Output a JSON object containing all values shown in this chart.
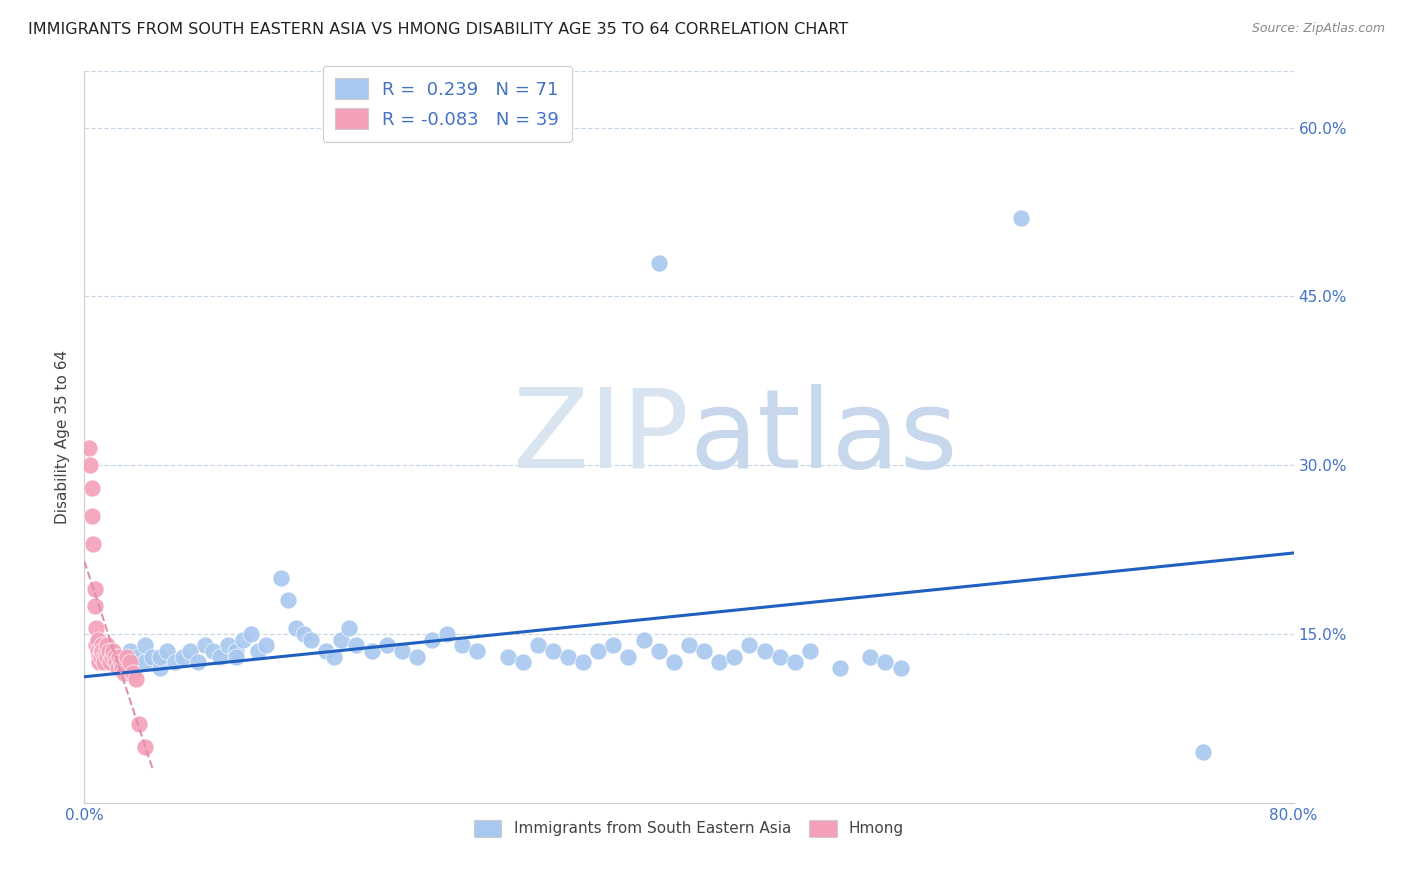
{
  "title": "IMMIGRANTS FROM SOUTH EASTERN ASIA VS HMONG DISABILITY AGE 35 TO 64 CORRELATION CHART",
  "source": "Source: ZipAtlas.com",
  "xlabel": "Immigrants from South Eastern Asia",
  "ylabel": "Disability Age 35 to 64",
  "xlim": [
    0.0,
    0.8
  ],
  "ylim": [
    0.0,
    0.65
  ],
  "ytick_positions": [
    0.15,
    0.3,
    0.45,
    0.6
  ],
  "ytick_labels": [
    "15.0%",
    "30.0%",
    "45.0%",
    "60.0%"
  ],
  "blue_R": 0.239,
  "blue_N": 71,
  "pink_R": -0.083,
  "pink_N": 39,
  "blue_color": "#a8c8f0",
  "pink_color": "#f4a0b8",
  "blue_line_color": "#2060c0",
  "pink_line_color": "#e090a8",
  "watermark_color": "#e0e8f4",
  "background_color": "#ffffff",
  "grid_color": "#c8d8e8",
  "blue_scatter_x": [
    0.02,
    0.025,
    0.03,
    0.03,
    0.035,
    0.04,
    0.04,
    0.045,
    0.05,
    0.05,
    0.055,
    0.06,
    0.065,
    0.07,
    0.075,
    0.08,
    0.085,
    0.09,
    0.095,
    0.1,
    0.1,
    0.105,
    0.11,
    0.115,
    0.12,
    0.13,
    0.135,
    0.14,
    0.145,
    0.15,
    0.16,
    0.165,
    0.17,
    0.175,
    0.18,
    0.19,
    0.2,
    0.21,
    0.22,
    0.23,
    0.24,
    0.25,
    0.26,
    0.28,
    0.29,
    0.3,
    0.31,
    0.32,
    0.33,
    0.34,
    0.35,
    0.36,
    0.37,
    0.38,
    0.39,
    0.4,
    0.41,
    0.42,
    0.43,
    0.44,
    0.45,
    0.46,
    0.47,
    0.48,
    0.5,
    0.52,
    0.53,
    0.54,
    0.38,
    0.62,
    0.74
  ],
  "blue_scatter_y": [
    0.125,
    0.13,
    0.12,
    0.135,
    0.13,
    0.125,
    0.14,
    0.13,
    0.12,
    0.13,
    0.135,
    0.125,
    0.13,
    0.135,
    0.125,
    0.14,
    0.135,
    0.13,
    0.14,
    0.135,
    0.13,
    0.145,
    0.15,
    0.135,
    0.14,
    0.2,
    0.18,
    0.155,
    0.15,
    0.145,
    0.135,
    0.13,
    0.145,
    0.155,
    0.14,
    0.135,
    0.14,
    0.135,
    0.13,
    0.145,
    0.15,
    0.14,
    0.135,
    0.13,
    0.125,
    0.14,
    0.135,
    0.13,
    0.125,
    0.135,
    0.14,
    0.13,
    0.145,
    0.135,
    0.125,
    0.14,
    0.135,
    0.125,
    0.13,
    0.14,
    0.135,
    0.13,
    0.125,
    0.135,
    0.12,
    0.13,
    0.125,
    0.12,
    0.48,
    0.52,
    0.045
  ],
  "pink_scatter_x": [
    0.003,
    0.004,
    0.005,
    0.005,
    0.006,
    0.007,
    0.007,
    0.008,
    0.008,
    0.009,
    0.009,
    0.01,
    0.01,
    0.011,
    0.011,
    0.012,
    0.012,
    0.013,
    0.013,
    0.014,
    0.015,
    0.015,
    0.016,
    0.017,
    0.018,
    0.019,
    0.02,
    0.021,
    0.022,
    0.023,
    0.024,
    0.025,
    0.026,
    0.028,
    0.03,
    0.032,
    0.034,
    0.036,
    0.04
  ],
  "pink_scatter_y": [
    0.315,
    0.3,
    0.28,
    0.255,
    0.23,
    0.19,
    0.175,
    0.155,
    0.14,
    0.145,
    0.135,
    0.13,
    0.125,
    0.135,
    0.13,
    0.14,
    0.135,
    0.13,
    0.125,
    0.135,
    0.13,
    0.14,
    0.135,
    0.125,
    0.13,
    0.135,
    0.13,
    0.125,
    0.12,
    0.13,
    0.125,
    0.12,
    0.115,
    0.13,
    0.125,
    0.115,
    0.11,
    0.07,
    0.05
  ]
}
